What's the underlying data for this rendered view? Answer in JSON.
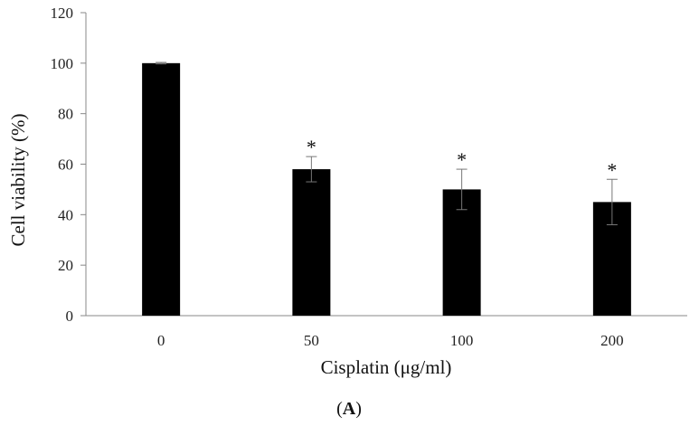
{
  "chart_data": {
    "type": "bar",
    "title": "",
    "xlabel": "Cisplatin (μg/ml)",
    "ylabel": "Cell viability (%)",
    "categories": [
      "0",
      "50",
      "100",
      "200"
    ],
    "values": [
      100,
      58,
      50,
      45
    ],
    "error": [
      0.3,
      5,
      8,
      9
    ],
    "significance": [
      "",
      "*",
      "*",
      "*"
    ],
    "yticks": [
      0,
      20,
      40,
      60,
      80,
      100,
      120
    ],
    "ylim": [
      0,
      120
    ],
    "grid": false,
    "bar_color": "#000000",
    "panel_label": {
      "open": "(",
      "bold": "A",
      "close": ")"
    }
  }
}
